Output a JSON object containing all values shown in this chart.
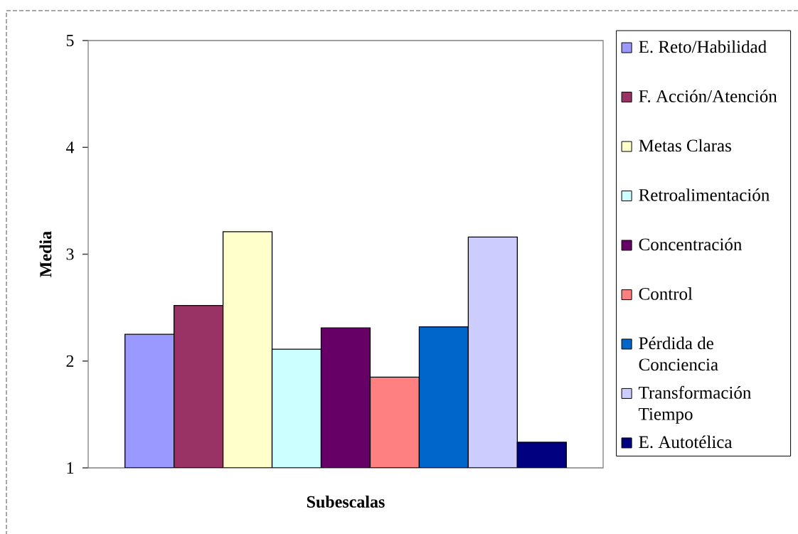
{
  "chart_data": {
    "type": "bar",
    "xlabel": "Subescalas",
    "ylabel": "Media",
    "categories": [
      null
    ],
    "series": [
      {
        "name": "E. Reto/Habilidad",
        "color": "#9999ff",
        "values": [
          2.25
        ]
      },
      {
        "name": "F. Acción/Atención",
        "color": "#993366",
        "values": [
          2.52
        ]
      },
      {
        "name": "Metas Claras",
        "color": "#ffffcc",
        "values": [
          3.21
        ]
      },
      {
        "name": "Retroalimentación",
        "color": "#ccffff",
        "values": [
          2.11
        ]
      },
      {
        "name": "Concentración",
        "color": "#660066",
        "values": [
          2.31
        ]
      },
      {
        "name": "Control",
        "color": "#ff8080",
        "values": [
          1.85
        ]
      },
      {
        "name": "Pérdida de Conciencia",
        "color": "#0066cc",
        "values": [
          2.32
        ]
      },
      {
        "name": "Transformación Tiempo",
        "color": "#ccccff",
        "values": [
          3.16
        ]
      },
      {
        "name": "E. Autotélica",
        "color": "#000080",
        "values": [
          1.24
        ]
      }
    ],
    "ylim": [
      1,
      5
    ],
    "yticks": [
      1,
      2,
      3,
      4,
      5
    ],
    "legend": "right"
  }
}
